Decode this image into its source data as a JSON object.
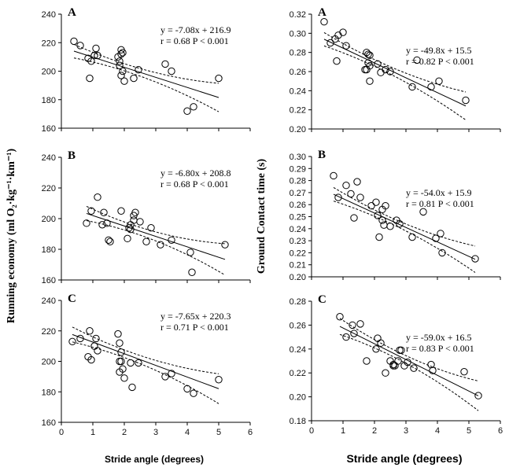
{
  "figure": {
    "left_ylabel": "Running economy (ml O₂·kg⁻¹·km⁻¹)",
    "right_ylabel": "Ground Contact time (s)",
    "left_xlabel": "Stride angle  (degrees)",
    "right_xlabel": "Stride angle  (degrees)"
  },
  "chart_data": [
    {
      "type": "scatter",
      "id": "left-A",
      "panel": "A",
      "eq_line1": "y = -7.08x + 216.9",
      "eq_line2": "r = 0.68   P < 0.001",
      "xlim": [
        0,
        6
      ],
      "ylim": [
        160,
        240
      ],
      "xticks": [
        "0",
        "1",
        "2",
        "3",
        "4",
        "5",
        "6"
      ],
      "yticks": [
        "160",
        "180",
        "200",
        "220",
        "240"
      ],
      "slope": -7.08,
      "intercept": 216.9,
      "ci": [
        2.5,
        9
      ],
      "x": [
        0.4,
        0.6,
        0.85,
        0.9,
        0.95,
        1.05,
        1.1,
        1.15,
        1.8,
        1.85,
        1.9,
        1.9,
        1.95,
        1.95,
        1.85,
        1.9,
        2.0,
        2.3,
        2.45,
        3.3,
        3.5,
        4.0,
        4.2,
        5.0
      ],
      "y": [
        221,
        218,
        209,
        195,
        207,
        211,
        216,
        211,
        210,
        207,
        215,
        212,
        213,
        200,
        204,
        197,
        193,
        195,
        201,
        205,
        200,
        172,
        175,
        195
      ]
    },
    {
      "type": "scatter",
      "id": "left-B",
      "panel": "B",
      "eq_line1": "y = -6.80x + 208.8",
      "eq_line2": "r = 0.68   P < 0.001",
      "xlim": [
        0,
        6
      ],
      "ylim": [
        160,
        240
      ],
      "xticks": [
        "0",
        "1",
        "2",
        "3",
        "4",
        "5",
        "6"
      ],
      "yticks": [
        "160",
        "180",
        "200",
        "220",
        "240"
      ],
      "slope": -6.8,
      "intercept": 208.8,
      "ci": [
        2.5,
        9
      ],
      "x": [
        0.8,
        0.95,
        1.15,
        1.3,
        1.35,
        1.45,
        1.5,
        1.55,
        1.9,
        2.1,
        2.15,
        2.2,
        2.3,
        2.3,
        2.35,
        2.2,
        2.5,
        2.7,
        2.85,
        3.15,
        3.5,
        4.1,
        4.15,
        5.2
      ],
      "y": [
        197,
        205,
        214,
        196,
        204,
        197,
        186,
        185,
        205,
        187,
        194,
        193,
        199,
        202,
        204,
        196,
        198,
        185,
        194,
        183,
        186,
        178,
        165,
        183
      ]
    },
    {
      "type": "scatter",
      "id": "left-C",
      "panel": "C",
      "eq_line1": "y = -7.65x + 220.3",
      "eq_line2": "r = 0.71   P < 0.001",
      "xlim": [
        0,
        6
      ],
      "ylim": [
        160,
        240
      ],
      "xticks": [
        "0",
        "1",
        "2",
        "3",
        "4",
        "5",
        "6"
      ],
      "yticks": [
        "160",
        "180",
        "200",
        "220",
        "240"
      ],
      "slope": -7.65,
      "intercept": 220.3,
      "ci": [
        2.5,
        9
      ],
      "x": [
        0.35,
        0.6,
        0.85,
        0.9,
        0.95,
        1.05,
        1.1,
        1.15,
        1.8,
        1.85,
        1.85,
        1.85,
        1.9,
        1.9,
        1.95,
        2.0,
        2.2,
        2.25,
        2.45,
        3.3,
        3.5,
        4.0,
        4.2,
        5.0
      ],
      "y": [
        213,
        215,
        203,
        220,
        201,
        210,
        215,
        207,
        218,
        212,
        200,
        193,
        206,
        200,
        195,
        189,
        199,
        183,
        199,
        190,
        192,
        182,
        179,
        188
      ]
    },
    {
      "type": "scatter",
      "id": "right-A",
      "panel": "A",
      "eq_line1": "y = -49.8x + 15.5",
      "eq_line2": "r = 0.82   P < 0.001",
      "xlim": [
        0,
        6
      ],
      "ylim": [
        0.2,
        0.32
      ],
      "xticks": [
        "0",
        "1",
        "2",
        "3",
        "4",
        "5",
        "6"
      ],
      "yticks": [
        "0.20",
        "0.22",
        "0.24",
        "0.26",
        "0.28",
        "0.30",
        "0.32"
      ],
      "slope": -0.0155,
      "intercept": 0.3,
      "ci": [
        0.0035,
        0.0135
      ],
      "x": [
        0.4,
        0.6,
        0.75,
        0.85,
        0.8,
        1.0,
        1.1,
        1.75,
        1.8,
        1.85,
        1.8,
        1.85,
        1.7,
        1.75,
        1.85,
        2.1,
        2.2,
        2.35,
        2.5,
        3.2,
        3.35,
        3.8,
        4.05,
        4.9
      ],
      "y": [
        0.312,
        0.29,
        0.294,
        0.298,
        0.271,
        0.301,
        0.287,
        0.28,
        0.278,
        0.277,
        0.269,
        0.266,
        0.262,
        0.262,
        0.25,
        0.268,
        0.259,
        0.262,
        0.26,
        0.244,
        0.272,
        0.244,
        0.25,
        0.23
      ]
    },
    {
      "type": "scatter",
      "id": "right-B",
      "panel": "B",
      "eq_line1": "y = -54.0x + 15.9",
      "eq_line2": "r = 0.81   P < 0.001",
      "xlim": [
        0,
        6
      ],
      "ylim": [
        0.2,
        0.3
      ],
      "xticks": [
        "0",
        "1",
        "2",
        "3",
        "4",
        "5",
        "6"
      ],
      "yticks": [
        "0.20",
        "0.21",
        "0.22",
        "0.23",
        "0.24",
        "0.25",
        "0.26",
        "0.27",
        "0.28",
        "0.29",
        "0.30"
      ],
      "slope": -0.012,
      "intercept": 0.277,
      "ci": [
        0.0025,
        0.011
      ],
      "x": [
        0.7,
        0.85,
        1.1,
        1.25,
        1.35,
        1.45,
        1.55,
        1.9,
        2.05,
        2.1,
        2.15,
        2.25,
        2.3,
        2.35,
        2.25,
        2.5,
        2.7,
        2.8,
        3.2,
        3.55,
        3.95,
        4.1,
        4.15,
        5.2
      ],
      "y": [
        0.284,
        0.266,
        0.276,
        0.269,
        0.249,
        0.279,
        0.266,
        0.259,
        0.262,
        0.251,
        0.233,
        0.247,
        0.243,
        0.259,
        0.256,
        0.242,
        0.247,
        0.244,
        0.233,
        0.254,
        0.232,
        0.236,
        0.22,
        0.215
      ]
    },
    {
      "type": "scatter",
      "id": "right-C",
      "panel": "C",
      "eq_line1": "y = -59.0x + 16.5",
      "eq_line2": "r = 0.83   P < 0.001",
      "xlim": [
        0,
        6
      ],
      "ylim": [
        0.18,
        0.28
      ],
      "xticks": [
        "0",
        "1",
        "2",
        "3",
        "4",
        "5",
        "6"
      ],
      "yticks": [
        "0.18",
        "0.20",
        "0.22",
        "0.24",
        "0.26",
        "0.28"
      ],
      "slope": -0.0132,
      "intercept": 0.2708,
      "ci": [
        0.003,
        0.0125
      ],
      "x": [
        0.9,
        1.1,
        1.3,
        1.35,
        1.55,
        1.75,
        2.05,
        2.1,
        2.2,
        2.35,
        2.5,
        2.6,
        2.6,
        2.65,
        2.8,
        2.85,
        2.75,
        2.95,
        3.05,
        3.25,
        3.8,
        3.85,
        4.85,
        5.3
      ],
      "y": [
        0.267,
        0.25,
        0.26,
        0.253,
        0.261,
        0.23,
        0.24,
        0.249,
        0.245,
        0.22,
        0.23,
        0.227,
        0.226,
        0.226,
        0.239,
        0.239,
        0.23,
        0.226,
        0.229,
        0.224,
        0.227,
        0.222,
        0.221,
        0.201
      ]
    }
  ]
}
